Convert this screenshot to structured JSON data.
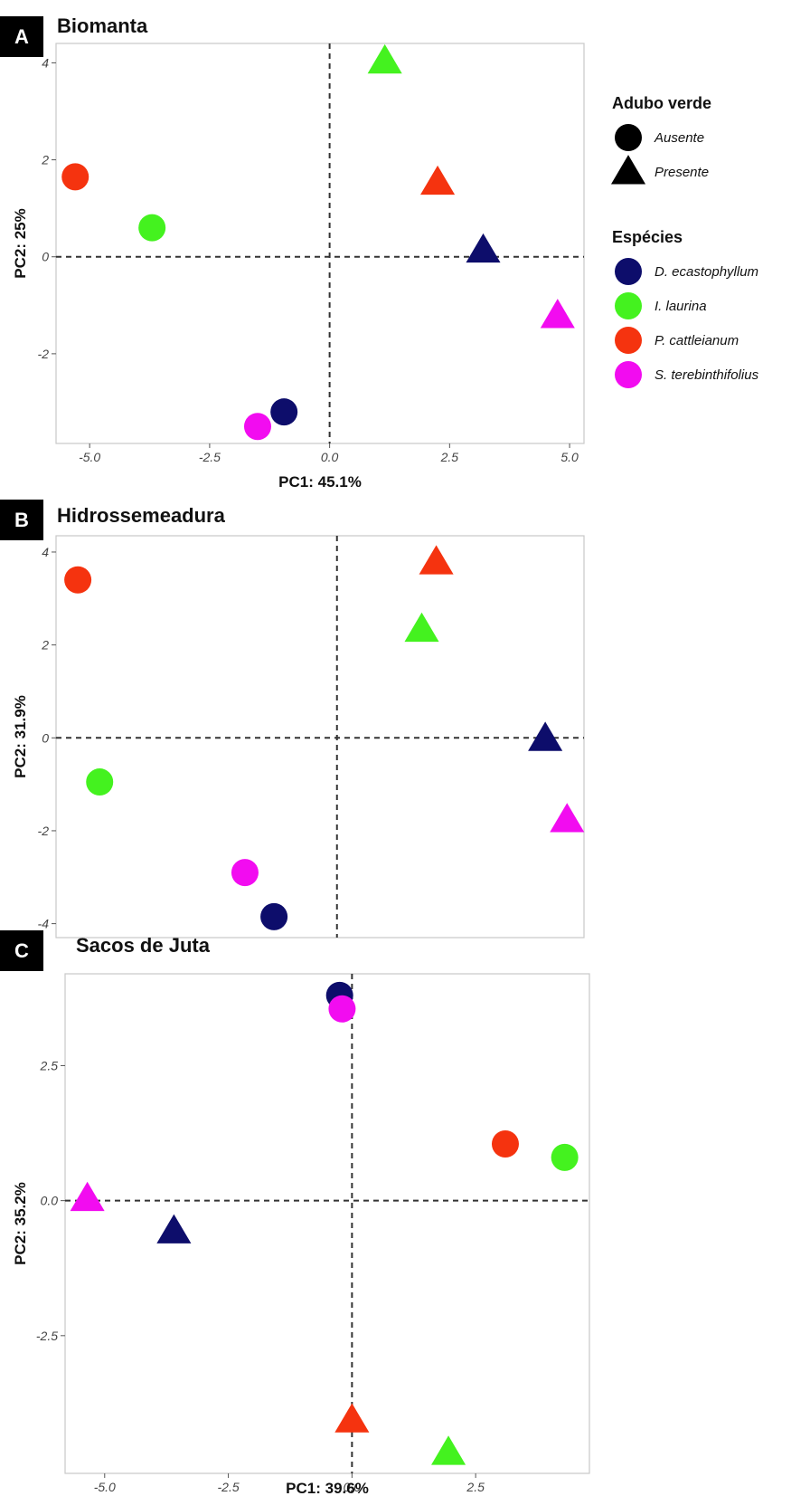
{
  "colors": {
    "D. ecastophyllum": "#0d0d6b",
    "I. laurina": "#44f21f",
    "P.  cattleianum": "#f5330f",
    "S. terebinthifolius": "#f20cf0"
  },
  "legend": {
    "shape_title": "Adubo verde",
    "shapes": [
      {
        "label": "Ausente",
        "shape": "circle"
      },
      {
        "label": "Presente",
        "shape": "triangle"
      }
    ],
    "species_title": "Espécies",
    "species": [
      {
        "label": "D. ecastophyllum",
        "color": "#0d0d6b"
      },
      {
        "label": "I. laurina",
        "color": "#44f21f"
      },
      {
        "label": "P.  cattleianum",
        "color": "#f5330f"
      },
      {
        "label": "S. terebinthifolius",
        "color": "#f20cf0"
      }
    ]
  },
  "chart_data": [
    {
      "type": "scatter",
      "panel": "A",
      "title": "Biomanta",
      "xlabel": "PC1: 45.1%",
      "ylabel": "PC2: 25%",
      "xlim": [
        -5.7,
        5.3
      ],
      "ylim": [
        -3.85,
        4.4
      ],
      "xticks": [
        -5.0,
        -2.5,
        0.0,
        2.5,
        5.0
      ],
      "xtick_labels": [
        "-5.0",
        "-2.5",
        "0.0",
        "2.5",
        "5.0"
      ],
      "yticks": [
        -2,
        0,
        2,
        4
      ],
      "ytick_labels": [
        "-2",
        "0",
        "2",
        "4"
      ],
      "points": [
        {
          "species": "D. ecastophyllum",
          "adubo": "Ausente",
          "x": -0.95,
          "y": -3.2
        },
        {
          "species": "S. terebinthifolius",
          "adubo": "Ausente",
          "x": -1.5,
          "y": -3.5
        },
        {
          "species": "I. laurina",
          "adubo": "Ausente",
          "x": -3.7,
          "y": 0.6
        },
        {
          "species": "P.  cattleianum",
          "adubo": "Ausente",
          "x": -5.3,
          "y": 1.65
        },
        {
          "species": "I. laurina",
          "adubo": "Presente",
          "x": 1.15,
          "y": 4.05
        },
        {
          "species": "P.  cattleianum",
          "adubo": "Presente",
          "x": 2.25,
          "y": 1.55
        },
        {
          "species": "D. ecastophyllum",
          "adubo": "Presente",
          "x": 3.2,
          "y": 0.15
        },
        {
          "species": "S. terebinthifolius",
          "adubo": "Presente",
          "x": 4.75,
          "y": -1.2
        }
      ]
    },
    {
      "type": "scatter",
      "panel": "B",
      "title": "Hidrossemeadura",
      "xlabel": "",
      "ylabel": "PC2: 31.9%",
      "xlim": [
        -5.8,
        5.1
      ],
      "ylim": [
        -4.3,
        4.35
      ],
      "xticks": [],
      "xtick_labels": [],
      "yticks": [
        -4,
        -2,
        0,
        2,
        4
      ],
      "ytick_labels": [
        "-4",
        "-2",
        "0",
        "2",
        "4"
      ],
      "points": [
        {
          "species": "P.  cattleianum",
          "adubo": "Ausente",
          "x": -5.35,
          "y": 3.4
        },
        {
          "species": "I. laurina",
          "adubo": "Ausente",
          "x": -4.9,
          "y": -0.95
        },
        {
          "species": "S. terebinthifolius",
          "adubo": "Ausente",
          "x": -1.9,
          "y": -2.9
        },
        {
          "species": "D. ecastophyllum",
          "adubo": "Ausente",
          "x": -1.3,
          "y": -3.85
        },
        {
          "species": "P.  cattleianum",
          "adubo": "Presente",
          "x": 2.05,
          "y": 3.8
        },
        {
          "species": "I. laurina",
          "adubo": "Presente",
          "x": 1.75,
          "y": 2.35
        },
        {
          "species": "D. ecastophyllum",
          "adubo": "Presente",
          "x": 4.3,
          "y": 0.0
        },
        {
          "species": "S. terebinthifolius",
          "adubo": "Presente",
          "x": 4.75,
          "y": -1.75
        }
      ]
    },
    {
      "type": "scatter",
      "panel": "C",
      "title": "Sacos de Juta",
      "xlabel": "PC1: 39.6%",
      "ylabel": "PC2: 35.2%",
      "xlim": [
        -5.8,
        4.8
      ],
      "ylim": [
        -5.05,
        4.2
      ],
      "xticks": [
        -5.0,
        -2.5,
        0.0,
        2.5
      ],
      "xtick_labels": [
        "-5.0",
        "-2.5",
        "0.0",
        "2.5"
      ],
      "yticks": [
        -2.5,
        0.0,
        2.5
      ],
      "ytick_labels": [
        "-2.5",
        "0.0",
        "2.5"
      ],
      "points": [
        {
          "species": "D. ecastophyllum",
          "adubo": "Ausente",
          "x": -0.25,
          "y": 3.8
        },
        {
          "species": "S. terebinthifolius",
          "adubo": "Ausente",
          "x": -0.2,
          "y": 3.55
        },
        {
          "species": "P.  cattleianum",
          "adubo": "Ausente",
          "x": 3.1,
          "y": 1.05
        },
        {
          "species": "I. laurina",
          "adubo": "Ausente",
          "x": 4.3,
          "y": 0.8
        },
        {
          "species": "S. terebinthifolius",
          "adubo": "Presente",
          "x": -5.35,
          "y": 0.05
        },
        {
          "species": "D. ecastophyllum",
          "adubo": "Presente",
          "x": -3.6,
          "y": -0.55
        },
        {
          "species": "P.  cattleianum",
          "adubo": "Presente",
          "x": 0.0,
          "y": -4.05
        },
        {
          "species": "I. laurina",
          "adubo": "Presente",
          "x": 1.95,
          "y": -4.65
        }
      ]
    }
  ]
}
